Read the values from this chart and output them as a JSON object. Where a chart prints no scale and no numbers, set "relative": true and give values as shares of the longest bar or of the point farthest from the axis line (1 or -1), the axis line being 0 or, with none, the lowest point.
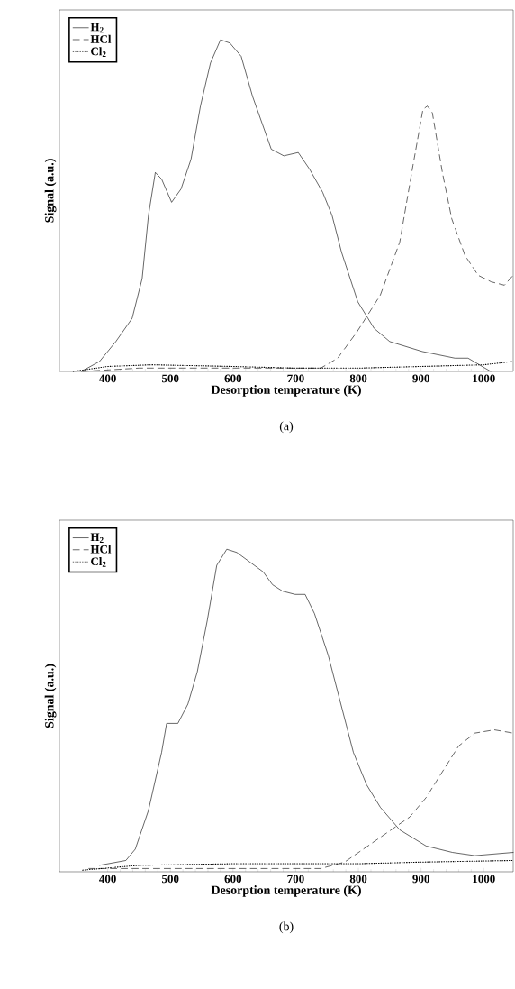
{
  "chart_data": [
    {
      "type": "line",
      "relative": true,
      "xlabel": "Desorption temperature (K)",
      "ylabel": "Signal (a.u.)",
      "xlim": [
        323,
        1047
      ],
      "xticks": [
        400,
        500,
        600,
        700,
        800,
        900,
        1000
      ],
      "legend": "top left",
      "annotations": [
        "(a)"
      ],
      "series": [
        {
          "name": "H$_{2}$",
          "color": "#000000",
          "line_style": "solid",
          "x": [
            358,
            387,
            413,
            439,
            455,
            465,
            476,
            486,
            502,
            517,
            533,
            548,
            564,
            580,
            595,
            613,
            631,
            646,
            661,
            681,
            704,
            722,
            743,
            758,
            773,
            799,
            825,
            850,
            902,
            954,
            975,
            993,
            1011
          ],
          "values": [
            0.0,
            0.03,
            0.09,
            0.16,
            0.28,
            0.47,
            0.6,
            0.58,
            0.51,
            0.55,
            0.64,
            0.8,
            0.93,
            1.0,
            0.99,
            0.95,
            0.83,
            0.75,
            0.67,
            0.65,
            0.66,
            0.61,
            0.54,
            0.47,
            0.36,
            0.21,
            0.13,
            0.09,
            0.06,
            0.04,
            0.04,
            0.02,
            0.0
          ]
        },
        {
          "name": "HCl",
          "color": "#000000",
          "line_style": "dashed",
          "x": [
            360,
            450,
            600,
            740,
            767,
            798,
            835,
            866,
            887,
            903,
            910,
            918,
            934,
            949,
            970,
            991,
            1012,
            1033,
            1047
          ],
          "values": [
            0.0,
            0.01,
            0.01,
            0.01,
            0.04,
            0.12,
            0.23,
            0.39,
            0.62,
            0.79,
            0.8,
            0.78,
            0.6,
            0.46,
            0.35,
            0.29,
            0.27,
            0.26,
            0.29
          ]
        },
        {
          "name": "Cl$_{2}$",
          "color": "#000000",
          "line_style": "dotted",
          "x": [
            345,
            400,
            470,
            600,
            700,
            800,
            900,
            1000,
            1047
          ],
          "values": [
            0.0,
            0.015,
            0.02,
            0.015,
            0.01,
            0.01,
            0.015,
            0.02,
            0.03
          ]
        }
      ]
    },
    {
      "type": "line",
      "relative": true,
      "xlabel": "Desorption temperature (K)",
      "ylabel": "Signal (a.u.)",
      "xlim": [
        323,
        1047
      ],
      "xticks": [
        400,
        500,
        600,
        700,
        800,
        900,
        1000
      ],
      "legend": "top left",
      "annotations": [
        "(b)"
      ],
      "series": [
        {
          "name": "H$_{2}$",
          "color": "#000000",
          "line_style": "solid",
          "x": [
            387,
            429,
            444,
            465,
            486,
            494,
            512,
            528,
            543,
            559,
            574,
            590,
            606,
            627,
            648,
            663,
            679,
            699,
            715,
            730,
            752,
            772,
            792,
            813,
            835,
            866,
            908,
            950,
            986,
            1047
          ],
          "values": [
            0.02,
            0.035,
            0.07,
            0.19,
            0.37,
            0.46,
            0.46,
            0.52,
            0.62,
            0.78,
            0.95,
            1.0,
            0.99,
            0.96,
            0.93,
            0.89,
            0.87,
            0.86,
            0.86,
            0.8,
            0.67,
            0.52,
            0.37,
            0.27,
            0.2,
            0.13,
            0.08,
            0.06,
            0.05,
            0.06
          ]
        },
        {
          "name": "HCl",
          "color": "#000000",
          "line_style": "dashed",
          "x": [
            370,
            450,
            600,
            740,
            778,
            830,
            882,
            908,
            934,
            960,
            986,
            1017,
            1047
          ],
          "values": [
            0.01,
            0.01,
            0.01,
            0.01,
            0.03,
            0.1,
            0.17,
            0.23,
            0.31,
            0.39,
            0.43,
            0.44,
            0.43
          ]
        },
        {
          "name": "Cl$_{2}$",
          "color": "#000000",
          "line_style": "dotted",
          "x": [
            360,
            450,
            600,
            800,
            900,
            1047
          ],
          "values": [
            0.005,
            0.02,
            0.025,
            0.025,
            0.03,
            0.035
          ]
        }
      ]
    }
  ]
}
